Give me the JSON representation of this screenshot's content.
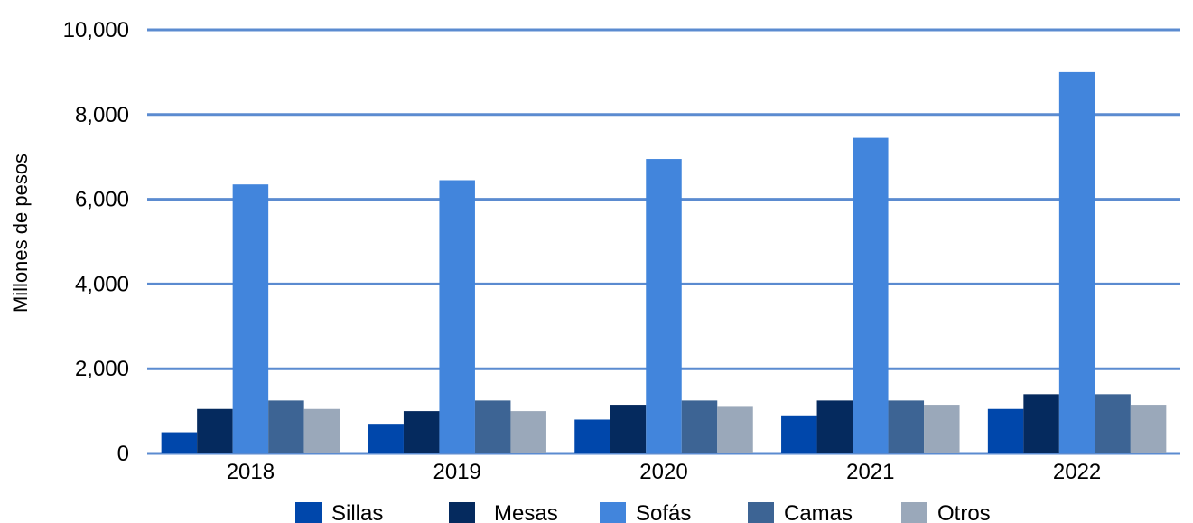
{
  "chart_data": {
    "type": "bar",
    "title": "",
    "xlabel": "",
    "ylabel": "Millones de pesos",
    "ylim": [
      0,
      10000
    ],
    "yticks": [
      "0",
      "2,000",
      "4,000",
      "6,000",
      "8,000",
      "10,000"
    ],
    "categories": [
      "2018",
      "2019",
      "2020",
      "2021",
      "2022"
    ],
    "grid": true,
    "legend_position": "bottom",
    "series": [
      {
        "name": "Sillas",
        "color": "#0047AB",
        "values": [
          500,
          700,
          800,
          900,
          1050
        ]
      },
      {
        "name": "Mesas",
        "color": "#052A5E",
        "values": [
          1050,
          1000,
          1150,
          1250,
          1400
        ]
      },
      {
        "name": "Sofás",
        "color": "#4285DC",
        "values": [
          6350,
          6450,
          6950,
          7450,
          9000
        ]
      },
      {
        "name": "Camas",
        "color": "#3D6494",
        "values": [
          1250,
          1250,
          1250,
          1250,
          1400
        ]
      },
      {
        "name": "Otros",
        "color": "#9AA8BA",
        "values": [
          1050,
          1000,
          1100,
          1150,
          1150
        ]
      }
    ],
    "grid_color": "#5B8BD0"
  }
}
